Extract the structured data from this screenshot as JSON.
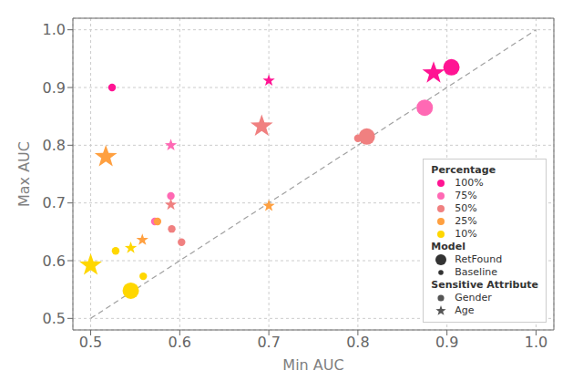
{
  "chart_data": {
    "type": "scatter",
    "title": "",
    "xlabel": "Min AUC",
    "ylabel": "Max AUC",
    "xlim": [
      0.48,
      1.02
    ],
    "ylim": [
      0.48,
      1.02
    ],
    "xticks": [
      0.5,
      0.6,
      0.7,
      0.8,
      0.9,
      {
        "value": 1.0,
        "label": "1.0"
      }
    ],
    "yticks": [
      0.5,
      0.6,
      0.7,
      0.8,
      0.9,
      {
        "value": 1.0,
        "label": "1.0"
      }
    ],
    "grid": true,
    "legend": "lower right",
    "reference_line": {
      "x": [
        0.5,
        1.0
      ],
      "y": [
        0.5,
        1.0
      ],
      "line_style": "dashed",
      "color": "gray"
    },
    "legend_sections": [
      "Percentage",
      "Model",
      "Sensitive Attribute"
    ],
    "models": [
      "RetFound",
      "Baseline"
    ],
    "attributes": [
      {
        "name": "Gender",
        "marker": "circle"
      },
      {
        "name": "Age",
        "marker": "star"
      }
    ],
    "series": [
      {
        "name": "100%",
        "color": "#FF1493",
        "points": [
          {
            "model": "RetFound",
            "attr": "Gender",
            "x": 0.905,
            "y": 0.935
          },
          {
            "model": "RetFound",
            "attr": "Age",
            "x": 0.885,
            "y": 0.925
          },
          {
            "model": "Baseline",
            "attr": "Gender",
            "x": 0.524,
            "y": 0.9
          },
          {
            "model": "Baseline",
            "attr": "Age",
            "x": 0.7,
            "y": 0.912
          }
        ]
      },
      {
        "name": "75%",
        "color": "#FF69B4",
        "points": [
          {
            "model": "RetFound",
            "attr": "Gender",
            "x": 0.875,
            "y": 0.865
          },
          {
            "model": "Baseline",
            "attr": "Age",
            "x": 0.59,
            "y": 0.8
          },
          {
            "model": "Baseline",
            "attr": "Gender",
            "x": 0.59,
            "y": 0.712
          },
          {
            "model": "Baseline",
            "attr": "Gender",
            "x": 0.572,
            "y": 0.668
          }
        ]
      },
      {
        "name": "50%",
        "color": "#F08080",
        "points": [
          {
            "model": "RetFound",
            "attr": "Gender",
            "x": 0.81,
            "y": 0.815
          },
          {
            "model": "RetFound",
            "attr": "Age",
            "x": 0.692,
            "y": 0.833
          },
          {
            "model": "Baseline",
            "attr": "Age",
            "x": 0.59,
            "y": 0.697
          },
          {
            "model": "Baseline",
            "attr": "Gender",
            "x": 0.591,
            "y": 0.655
          },
          {
            "model": "Baseline",
            "attr": "Gender",
            "x": 0.602,
            "y": 0.632
          },
          {
            "model": "Baseline",
            "attr": "Gender",
            "x": 0.8,
            "y": 0.812
          }
        ]
      },
      {
        "name": "25%",
        "color": "#FFA040",
        "points": [
          {
            "model": "RetFound",
            "attr": "Age",
            "x": 0.517,
            "y": 0.78
          },
          {
            "model": "Baseline",
            "attr": "Age",
            "x": 0.558,
            "y": 0.636
          },
          {
            "model": "Baseline",
            "attr": "Age",
            "x": 0.7,
            "y": 0.695
          },
          {
            "model": "Baseline",
            "attr": "Gender",
            "x": 0.575,
            "y": 0.668
          }
        ]
      },
      {
        "name": "10%",
        "color": "#FFD700",
        "points": [
          {
            "model": "RetFound",
            "attr": "Age",
            "x": 0.5,
            "y": 0.592
          },
          {
            "model": "RetFound",
            "attr": "Gender",
            "x": 0.545,
            "y": 0.548
          },
          {
            "model": "Baseline",
            "attr": "Gender",
            "x": 0.528,
            "y": 0.617
          },
          {
            "model": "Baseline",
            "attr": "Gender",
            "x": 0.559,
            "y": 0.573
          },
          {
            "model": "Baseline",
            "attr": "Age",
            "x": 0.545,
            "y": 0.622
          }
        ]
      }
    ]
  }
}
